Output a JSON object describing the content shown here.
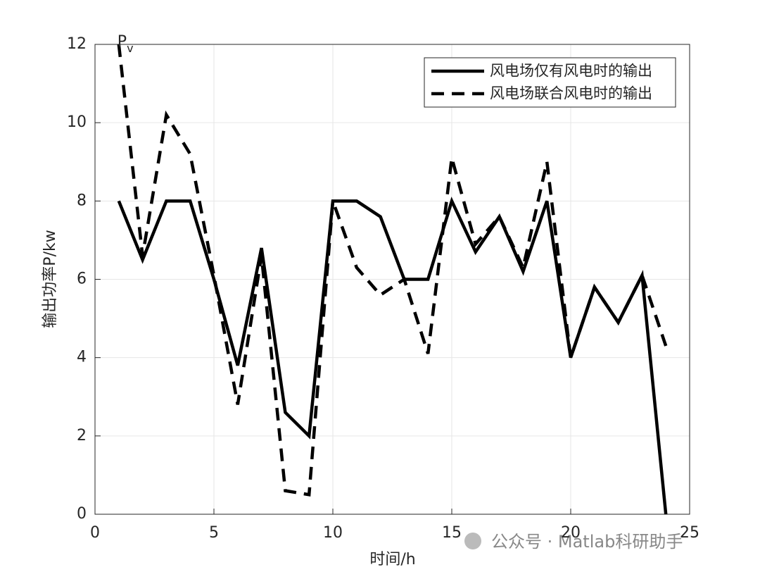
{
  "chart_data": {
    "type": "line",
    "xlabel": "时间/h",
    "ylabel": "输出功率P/kw",
    "annotation": {
      "text": "P",
      "subscript": "v"
    },
    "watermark": "公众号 · Matlab科研助手",
    "x": [
      1,
      2,
      3,
      4,
      5,
      6,
      7,
      8,
      9,
      10,
      11,
      12,
      13,
      14,
      15,
      16,
      17,
      18,
      19,
      20,
      21,
      22,
      23,
      24
    ],
    "series": [
      {
        "name": "风电场仅有风电时的输出",
        "color": "#000000",
        "dash": "solid",
        "values": [
          8,
          6.5,
          8,
          8,
          6,
          3.8,
          6.8,
          2.6,
          2,
          8,
          8,
          7.6,
          6,
          6,
          8,
          6.7,
          7.6,
          6.2,
          8,
          4,
          5.8,
          4.9,
          6.1,
          0
        ]
      },
      {
        "name": "风电场联合风电时的输出",
        "color": "#000000",
        "dash": "dashed",
        "values": [
          12,
          6.6,
          10.2,
          9.2,
          6.1,
          2.8,
          6.6,
          0.6,
          0.5,
          8,
          6.3,
          5.6,
          6,
          4.1,
          9.1,
          6.9,
          7.6,
          6.3,
          9,
          4,
          5.8,
          4.9,
          6.1,
          4.3
        ]
      }
    ],
    "xlim": [
      0,
      25
    ],
    "xticks": [
      0,
      5,
      10,
      15,
      20,
      25
    ],
    "ylim": [
      0,
      12
    ],
    "yticks": [
      0,
      2,
      4,
      6,
      8,
      10,
      12
    ],
    "grid": true,
    "legend": "upper right"
  }
}
